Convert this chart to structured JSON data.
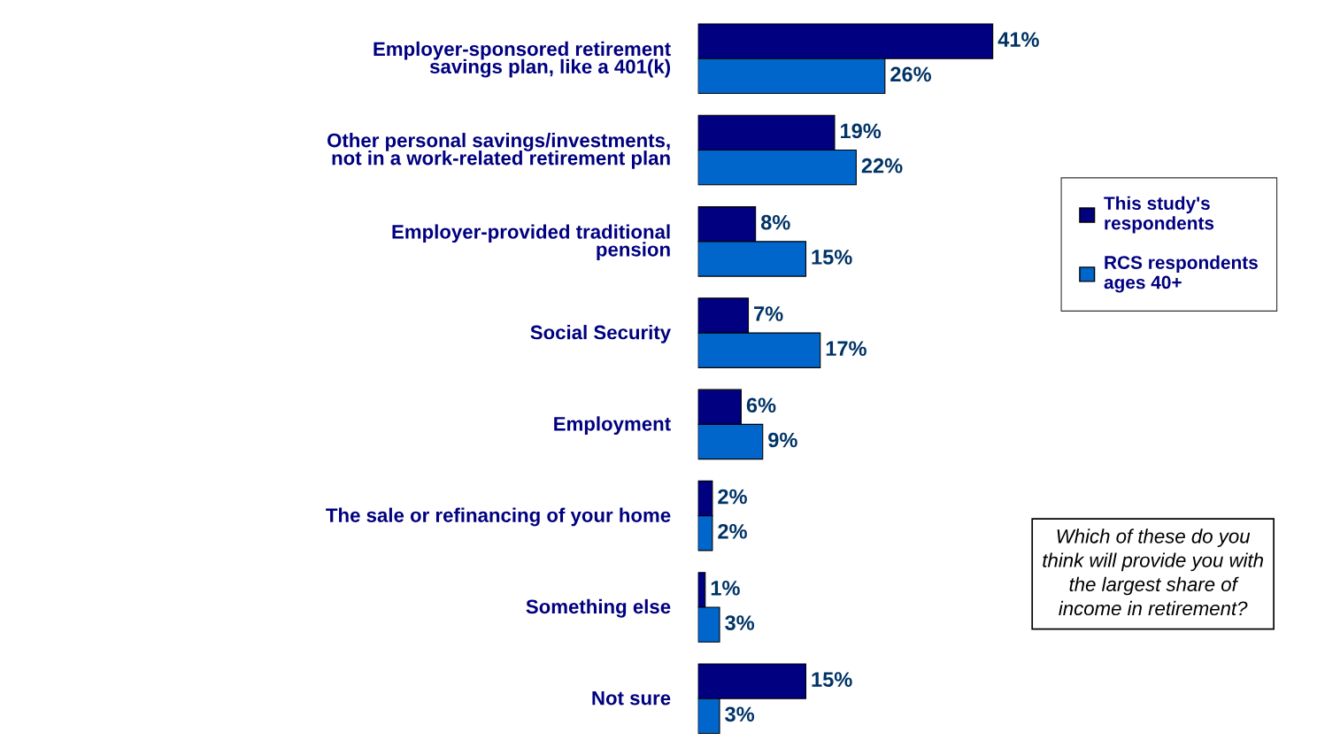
{
  "chart_data": {
    "type": "bar",
    "orientation": "horizontal",
    "categories": [
      "Employer-sponsored retirement\nsavings plan, like a 401(k)",
      "Other personal savings/investments,\nnot in a work-related retirement plan",
      "Employer-provided traditional\npension",
      "Social Security",
      "Employment",
      "The sale or refinancing of your home",
      "Something else",
      "Not sure"
    ],
    "series": [
      {
        "name": "This study's\nrespondents",
        "color": "#000080",
        "values": [
          41,
          19,
          8,
          7,
          6,
          2,
          1,
          15
        ],
        "value_labels": [
          "41%",
          "19%",
          "8%",
          "7%",
          "6%",
          "2%",
          "1%",
          "15%"
        ]
      },
      {
        "name": "RCS respondents\nages 40+",
        "color": "#0066cc",
        "values": [
          26,
          22,
          15,
          17,
          9,
          2,
          3,
          3
        ],
        "value_labels": [
          "26%",
          "22%",
          "15%",
          "17%",
          "9%",
          "2%",
          "3%",
          "3%"
        ]
      }
    ],
    "legend": "right",
    "grid": false,
    "annotations": [
      "Which of these do you\nthink will provide you with\nthe largest share of\nincome in retirement?"
    ]
  }
}
